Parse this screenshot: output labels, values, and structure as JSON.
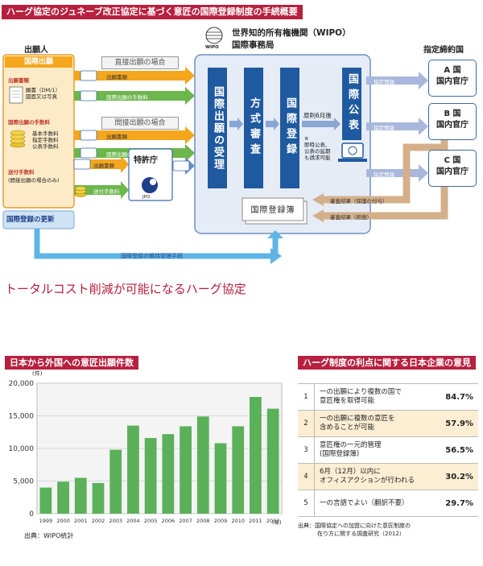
{
  "title": "ハーグ協定のジュネーブ改正協定に基づく意匠の国際登録制度の手続概要",
  "applicant": {
    "heading": "出願人",
    "box_title": "国際出願",
    "docs_label": "出願書類",
    "docs_detail_1": "願書（DM/1）",
    "docs_detail_2": "図面又は写真",
    "fees_label": "国際出願の手数料",
    "fees_detail_1": "基本手数料",
    "fees_detail_2": "指定手数料",
    "fees_detail_3": "公表手数料",
    "transfer_label": "送付手数料",
    "transfer_detail": "(間接出願の場合のみ)",
    "renewal": "国際登録の更新"
  },
  "wipo": {
    "logo_text": "WIPO",
    "name_1": "世界知的所有権機関（WIPO）",
    "name_2": "国際事務局",
    "step_receive": "国際出願の受理",
    "step_formal": "方式審査",
    "step_register": "国際登録",
    "step_publish": "国際公表",
    "principle": "原則6月後",
    "note_mark": "※",
    "note_1": "即時公表、",
    "note_2": "公表の延期",
    "note_3": "も請求可能",
    "register_book": "国際登録簿"
  },
  "routes": {
    "direct": "直接出願の場合",
    "indirect": "間接出願の場合",
    "docs_arrow": "出願書類",
    "fees_arrow": "国際出願の手数料",
    "docs_arrow2": "出願書類",
    "fees_arrow2": "国際出願の手数料",
    "docs_arrow3": "出願書類",
    "transfer_arrow": "送付手数料",
    "jpo_name": "特許庁",
    "jpo_abbr": "JPO",
    "maintenance": "国際登録の維持管理手続"
  },
  "designated": {
    "heading": "指定締約国",
    "countries": [
      {
        "name": "A 国",
        "office": "国内官庁"
      },
      {
        "name": "B 国",
        "office": "国内官庁"
      },
      {
        "name": "C 国",
        "office": "国内官庁"
      }
    ],
    "info_label": "指定情報",
    "result_grant": "審査結果（保護の付与）",
    "result_refuse": "審査結果（拒絶）"
  },
  "slogan": "トータルコスト削減が可能になるハーグ協定",
  "chart_data": {
    "type": "bar",
    "title": "日本から外国への意匠出願件数",
    "yunit": "(件)",
    "xunit": "(年)",
    "categories": [
      "1999",
      "2000",
      "2001",
      "2002",
      "2003",
      "2004",
      "2005",
      "2006",
      "2007",
      "2008",
      "2009",
      "2010",
      "2011",
      "2012"
    ],
    "values": [
      4000,
      4900,
      5500,
      4700,
      9800,
      13500,
      11600,
      12200,
      13400,
      14900,
      10800,
      13400,
      17900,
      16100
    ],
    "yticks": [
      "0",
      "5,000",
      "10,000",
      "15,000",
      "20,000"
    ],
    "ylim": [
      0,
      20000
    ],
    "grid": true,
    "color": "#5bb05a",
    "source": "出典：WIPO統計"
  },
  "opinions": {
    "title": "ハーグ制度の利点に関する日本企業の意見",
    "rows": [
      {
        "no": "1",
        "line1": "一の出願により複数の国で",
        "line2": "意匠権を取得可能",
        "pct": "84.7%"
      },
      {
        "no": "2",
        "line1": "一の出願に複数の意匠を",
        "line2": "含めることが可能",
        "pct": "57.9%"
      },
      {
        "no": "3",
        "line1": "意匠権の一元的管理",
        "line2": "(国際登録簿)",
        "pct": "56.5%"
      },
      {
        "no": "4",
        "line1": "6月（12月）以内に",
        "line2": "オフィスアクションが行われる",
        "pct": "30.2%"
      },
      {
        "no": "5",
        "line1": "一の言語でよい（翻訳不要）",
        "line2": "",
        "pct": "29.7%"
      }
    ],
    "source_1": "出典：国際協定への加盟に向けた意匠制度の",
    "source_2": "在り方に関する調査研究（2012）"
  }
}
